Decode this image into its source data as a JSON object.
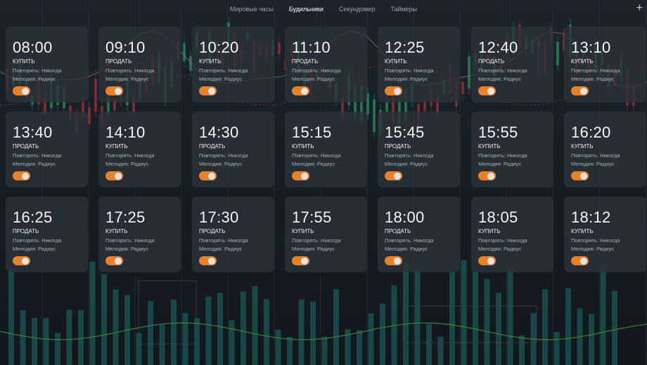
{
  "tabs": [
    {
      "label": "Мировые часы",
      "active": false
    },
    {
      "label": "Будильники",
      "active": true
    },
    {
      "label": "Секундомер",
      "active": false
    },
    {
      "label": "Таймеры",
      "active": false
    }
  ],
  "add_label": "+",
  "alarms": [
    {
      "time": "08:00",
      "action": "КУПИТЬ",
      "repeat": "Повторять: Никогда",
      "melody": "Мелодия: Радиус",
      "enabled": true
    },
    {
      "time": "09:10",
      "action": "ПРОДАТЬ",
      "repeat": "Повторять: Никогда",
      "melody": "Мелодия: Радиус",
      "enabled": true
    },
    {
      "time": "10:20",
      "action": "КУПИТЬ",
      "repeat": "Повторять: Никогда",
      "melody": "Мелодия: Радиус",
      "enabled": true
    },
    {
      "time": "11:10",
      "action": "ПРОДАТЬ",
      "repeat": "Повторять: Никогда",
      "melody": "Мелодия: Радиус",
      "enabled": true
    },
    {
      "time": "12:25",
      "action": "КУПИТЬ",
      "repeat": "Повторять: Никогда",
      "melody": "Мелодия: Радиус",
      "enabled": true
    },
    {
      "time": "12:40",
      "action": "ПРОДАТЬ",
      "repeat": "Повторять: Никогда",
      "melody": "Мелодия: Радиус",
      "enabled": true
    },
    {
      "time": "13:10",
      "action": "КУПИТЬ",
      "repeat": "Повторять: Никогда",
      "melody": "Мелодия: Радиус",
      "enabled": true
    },
    {
      "time": "13:40",
      "action": "ПРОДАТЬ",
      "repeat": "Повторять: Никогда",
      "melody": "Мелодия: Радиус",
      "enabled": true
    },
    {
      "time": "14:10",
      "action": "КУПИТЬ",
      "repeat": "Повторять: Никогда",
      "melody": "Мелодия: Радиус",
      "enabled": true
    },
    {
      "time": "14:30",
      "action": "ПРОДАТЬ",
      "repeat": "Повторять: Никогда",
      "melody": "Мелодия: Радиус",
      "enabled": true
    },
    {
      "time": "15:15",
      "action": "КУПИТЬ",
      "repeat": "Повторять: Никогда",
      "melody": "Мелодия: Радиус",
      "enabled": true
    },
    {
      "time": "15:45",
      "action": "ПРОДАТЬ",
      "repeat": "Повторять: Никогда",
      "melody": "Мелодия: Радиус",
      "enabled": true
    },
    {
      "time": "15:55",
      "action": "КУПИТЬ",
      "repeat": "Повторять: Никогда",
      "melody": "Мелодия: Радиус",
      "enabled": true
    },
    {
      "time": "16:20",
      "action": "КУПИТЬ",
      "repeat": "Повторять: Никогда",
      "melody": "Мелодия: Радиус",
      "enabled": true
    },
    {
      "time": "16:25",
      "action": "ПРОДАТЬ",
      "repeat": "Повторять: Никогда",
      "melody": "Мелодия: Радиус",
      "enabled": true
    },
    {
      "time": "17:25",
      "action": "КУПИТЬ",
      "repeat": "Повторять: Никогда",
      "melody": "Мелодия: Радиус",
      "enabled": true
    },
    {
      "time": "17:30",
      "action": "ПРОДАТЬ",
      "repeat": "Повторять: Никогда",
      "melody": "Мелодия: Радиус",
      "enabled": true
    },
    {
      "time": "17:55",
      "action": "КУПИТЬ",
      "repeat": "Повторять: Никогда",
      "melody": "Мелодия: Радиус",
      "enabled": true
    },
    {
      "time": "18:00",
      "action": "ПРОДАТЬ",
      "repeat": "Повторять: Никогда",
      "melody": "Мелодия: Радиус",
      "enabled": true
    },
    {
      "time": "18:05",
      "action": "КУПИТЬ",
      "repeat": "Повторять: Никогда",
      "melody": "Мелодия: Радиус",
      "enabled": true
    },
    {
      "time": "18:12",
      "action": "КУПИТЬ",
      "repeat": "Повторять: Никогда",
      "melody": "Мелодия: Радиус",
      "enabled": true
    }
  ],
  "colors": {
    "background": "#161c23",
    "card": "#2c3239",
    "toggle_on": "#e8822a",
    "candle_up": "#2fa36b",
    "candle_down": "#b8323e",
    "volume_bar": "#1f6e68"
  }
}
